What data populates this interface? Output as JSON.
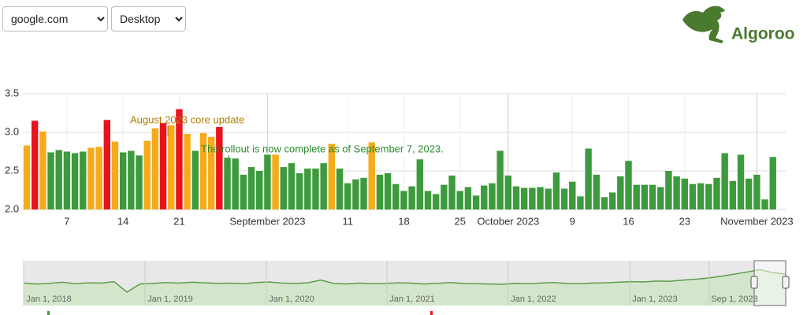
{
  "controls": {
    "site": "google.com",
    "device": "Desktop"
  },
  "logo": {
    "name": "Algoroo"
  },
  "chart_data": {
    "type": "bar",
    "categories": [
      null,
      null,
      null,
      null,
      null,
      "7",
      null,
      null,
      null,
      null,
      null,
      null,
      "14",
      null,
      null,
      null,
      null,
      null,
      null,
      "21",
      null,
      null,
      null,
      null,
      null,
      null,
      null,
      null,
      null,
      null,
      "September 2023",
      null,
      null,
      null,
      null,
      null,
      null,
      null,
      null,
      null,
      "11",
      null,
      null,
      null,
      null,
      null,
      null,
      "18",
      null,
      null,
      null,
      null,
      null,
      null,
      "25",
      null,
      null,
      null,
      null,
      null,
      "October 2023",
      null,
      null,
      null,
      null,
      null,
      null,
      null,
      "9",
      null,
      null,
      null,
      null,
      null,
      null,
      "16",
      null,
      null,
      null,
      null,
      null,
      null,
      "23",
      null,
      null,
      null,
      null,
      null,
      null,
      null,
      null,
      "November 2023",
      null,
      null
    ],
    "values": [
      2.83,
      3.15,
      3.01,
      2.74,
      2.77,
      2.75,
      2.73,
      2.75,
      2.8,
      2.81,
      3.16,
      2.88,
      2.74,
      2.76,
      2.7,
      2.89,
      3.05,
      3.12,
      3.09,
      3.3,
      2.98,
      2.76,
      2.99,
      2.94,
      3.07,
      2.67,
      2.66,
      2.45,
      2.55,
      2.5,
      2.71,
      2.71,
      2.55,
      2.6,
      2.47,
      2.53,
      2.53,
      2.6,
      2.85,
      2.53,
      2.34,
      2.39,
      2.41,
      2.87,
      2.45,
      2.47,
      2.33,
      2.24,
      2.3,
      2.65,
      2.24,
      2.2,
      2.32,
      2.44,
      2.24,
      2.29,
      2.18,
      2.31,
      2.34,
      2.76,
      2.44,
      2.3,
      2.28,
      2.28,
      2.29,
      2.27,
      2.48,
      2.27,
      2.36,
      2.17,
      2.79,
      2.45,
      2.16,
      2.22,
      2.43,
      2.63,
      2.32,
      2.32,
      2.32,
      2.29,
      2.5,
      2.43,
      2.4,
      2.33,
      2.34,
      2.33,
      2.41,
      2.73,
      2.37,
      2.71,
      2.4,
      2.45,
      2.13,
      2.68
    ],
    "colors": [
      "#f5ab1b",
      "#e8141b",
      "#f5ab1b",
      "#3d9a3d",
      "#3d9a3d",
      "#3d9a3d",
      "#3d9a3d",
      "#3d9a3d",
      "#f5ab1b",
      "#f5ab1b",
      "#e8141b",
      "#f5ab1b",
      "#3d9a3d",
      "#3d9a3d",
      "#3d9a3d",
      "#f5ab1b",
      "#f5ab1b",
      "#e8141b",
      "#f5ab1b",
      "#e8141b",
      "#f5ab1b",
      "#3d9a3d",
      "#f5ab1b",
      "#f5ab1b",
      "#e8141b",
      "#3d9a3d",
      "#3d9a3d",
      "#3d9a3d",
      "#3d9a3d",
      "#3d9a3d",
      "#3d9a3d",
      "#f5ab1b",
      "#3d9a3d",
      "#3d9a3d",
      "#3d9a3d",
      "#3d9a3d",
      "#3d9a3d",
      "#3d9a3d",
      "#f5ab1b",
      "#3d9a3d",
      "#3d9a3d",
      "#3d9a3d",
      "#3d9a3d",
      "#f5ab1b",
      "#3d9a3d",
      "#3d9a3d",
      "#3d9a3d",
      "#3d9a3d",
      "#3d9a3d",
      "#3d9a3d",
      "#3d9a3d",
      "#3d9a3d",
      "#3d9a3d",
      "#3d9a3d",
      "#3d9a3d",
      "#3d9a3d",
      "#3d9a3d",
      "#3d9a3d",
      "#3d9a3d",
      "#3d9a3d",
      "#3d9a3d",
      "#3d9a3d",
      "#3d9a3d",
      "#3d9a3d",
      "#3d9a3d",
      "#3d9a3d",
      "#3d9a3d",
      "#3d9a3d",
      "#3d9a3d",
      "#3d9a3d",
      "#3d9a3d",
      "#3d9a3d",
      "#3d9a3d",
      "#3d9a3d",
      "#3d9a3d",
      "#3d9a3d",
      "#3d9a3d",
      "#3d9a3d",
      "#3d9a3d",
      "#3d9a3d",
      "#3d9a3d",
      "#3d9a3d",
      "#3d9a3d",
      "#3d9a3d",
      "#3d9a3d",
      "#3d9a3d",
      "#3d9a3d",
      "#3d9a3d",
      "#3d9a3d",
      "#3d9a3d",
      "#3d9a3d",
      "#3d9a3d",
      "#3d9a3d",
      "#3d9a3d"
    ],
    "ylim": [
      2.0,
      3.5
    ],
    "yticks": [
      {
        "value": 2.0,
        "label": "2.0"
      },
      2.5,
      {
        "value": 3.0,
        "label": "3.0"
      },
      3.5
    ],
    "grid": true,
    "annotations": [
      {
        "text": "August 2023 core update",
        "color": "#b07d00"
      },
      {
        "text": "The rollout is now complete as of September 7, 2023.",
        "color": "#2e8b2e"
      }
    ]
  },
  "navigator": {
    "values": [
      2.25,
      2.22,
      2.24,
      2.28,
      2.23,
      2.26,
      2.25,
      2.3,
      1.95,
      2.22,
      2.24,
      2.27,
      2.25,
      2.28,
      2.26,
      2.24,
      2.25,
      2.23,
      2.27,
      2.29,
      2.25,
      2.24,
      2.26,
      2.35,
      2.24,
      2.22,
      2.25,
      2.23,
      2.24,
      2.26,
      2.25,
      2.22,
      2.24,
      2.27,
      2.24,
      2.23,
      2.22,
      2.21,
      2.24,
      2.23,
      2.25,
      2.27,
      2.24,
      2.23,
      2.25,
      2.26,
      2.28,
      2.3,
      2.29,
      2.32,
      2.31,
      2.35,
      2.38,
      2.42,
      2.48,
      2.55,
      2.62,
      2.7,
      2.6,
      2.55
    ],
    "ylim": [
      1.5,
      3.0
    ],
    "labels": [
      "Jan 1, 2018",
      "Jan 1, 2019",
      "Jan 1, 2020",
      "Jan 1, 2021",
      "Jan 1, 2022",
      "Jan 1, 2023",
      "Sep 1, 2023"
    ]
  }
}
